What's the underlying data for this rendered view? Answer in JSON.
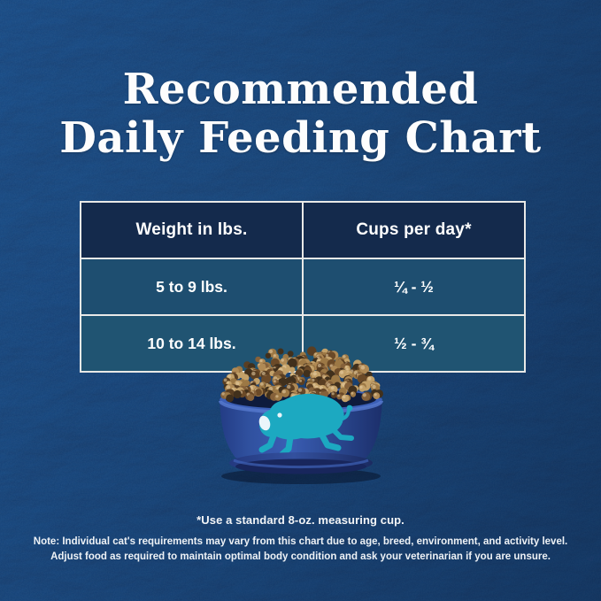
{
  "title": {
    "line1": "Recommended",
    "line2": "Daily Feeding Chart"
  },
  "chart_data": {
    "type": "table",
    "title": "Recommended Daily Feeding Chart",
    "columns": [
      "Weight in lbs.",
      "Cups per day*"
    ],
    "rows": [
      {
        "weight": "5 to 9 lbs.",
        "cups": "¼ - ½"
      },
      {
        "weight": "10 to 14 lbs.",
        "cups": "½ - ¾"
      }
    ],
    "footnote": "*Use a standard 8-oz. measuring cup."
  },
  "note": {
    "line1": "Note: Individual cat's requirements may vary from this chart due to age, breed, environment, and activity level.",
    "line2": "Adjust food as required to maintain optimal body condition and ask your veterinarian if you are unsure."
  },
  "icons": {
    "bowl_logo": "buffalo-icon"
  },
  "colors": {
    "background_navy": "#16395f",
    "header_cell": "#142a4c",
    "data_cell_row1": "#1e4e70",
    "data_cell_row2": "#205472",
    "table_border": "#e9e9e7",
    "text_white": "#ffffff",
    "bowl_blue": "#2b4d9f",
    "bowl_shadow_blue": "#1d3272",
    "bowl_highlight_blue": "#4a6dc0",
    "buffalo_teal": "#1ca9c1",
    "kibble_browns": [
      "#c3a169",
      "#b08a55",
      "#9c7845",
      "#85613a",
      "#6b4a28",
      "#593e22"
    ]
  }
}
